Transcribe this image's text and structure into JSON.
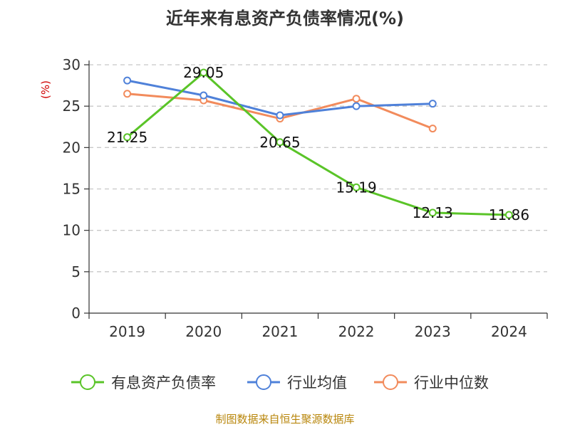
{
  "title": "近年来有息资产负债率情况(%)",
  "source_note": "制图数据来自恒生聚源数据库",
  "chart_data": {
    "type": "line",
    "title": "近年来有息资产负债率情况(%)",
    "ylabel": "(%)",
    "xlabel": "",
    "categories": [
      "2019",
      "2020",
      "2021",
      "2022",
      "2023",
      "2024"
    ],
    "ylim": [
      0,
      30
    ],
    "yticks": [
      0,
      5,
      10,
      15,
      20,
      25,
      30
    ],
    "grid": true,
    "legend_position": "bottom",
    "series": [
      {
        "name": "有息资产负债率",
        "color": "#5ac428",
        "values": [
          21.25,
          29.05,
          20.65,
          15.19,
          12.13,
          11.86
        ],
        "labels": [
          "21.25",
          "29.05",
          "20.65",
          "15.19",
          "12.13",
          "11.86"
        ]
      },
      {
        "name": "行业均值",
        "color": "#4f81d9",
        "values": [
          28.1,
          26.3,
          23.9,
          25.0,
          25.3,
          null
        ],
        "labels": []
      },
      {
        "name": "行业中位数",
        "color": "#f28b5c",
        "values": [
          26.5,
          25.7,
          23.5,
          25.9,
          22.3,
          null
        ],
        "labels": []
      }
    ]
  }
}
